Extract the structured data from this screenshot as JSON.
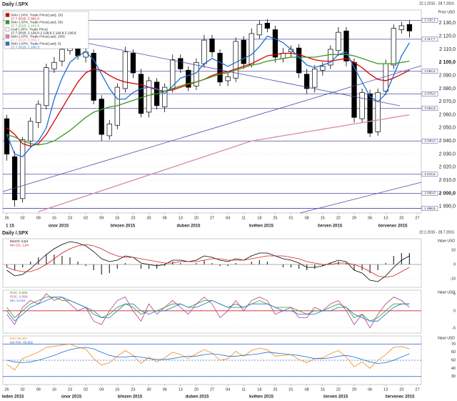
{
  "chart_data": [
    {
      "type": "candlestick",
      "title": "Daily /.SPX",
      "date_range": "22.1.2015 - 28.7.2015",
      "y_axis_label": "Price USD",
      "xtick_labels": [
        "26",
        "02",
        "09",
        "16",
        "23",
        "02",
        "09",
        "16",
        "23",
        "30",
        "06",
        "13",
        "20",
        "27",
        "04",
        "11",
        "18",
        "25",
        "01",
        "08",
        "15",
        "22",
        "29",
        "06",
        "13",
        "20",
        "27"
      ],
      "month_labels": [
        "1 15",
        "únor 2015",
        "březen 2015",
        "duben 2015",
        "květen 2015",
        "červen 2015",
        "červenec 2015"
      ],
      "open": [
        2057,
        2028,
        1996,
        2040,
        2054,
        2067,
        2095,
        2101,
        2109,
        2116,
        2104,
        2107,
        2072,
        2044,
        2052,
        2080,
        2107,
        2091,
        2062,
        2085,
        2066,
        2080,
        2103,
        2094,
        2082,
        2099,
        2118,
        2107,
        2086,
        2088,
        2117,
        2098,
        2121,
        2130,
        2125,
        2103,
        2108,
        2111,
        2091,
        2081,
        2094,
        2098,
        2109,
        2124,
        2100,
        2057,
        2076,
        2047,
        2078,
        2098,
        2125,
        2129
      ],
      "high": [
        2060,
        2032,
        2043,
        2058,
        2071,
        2099,
        2104,
        2113,
        2119,
        2119,
        2111,
        2110,
        2075,
        2056,
        2084,
        2112,
        2110,
        2095,
        2089,
        2088,
        2084,
        2106,
        2106,
        2097,
        2103,
        2121,
        2121,
        2110,
        2092,
        2119,
        2120,
        2126,
        2132,
        2133,
        2128,
        2111,
        2113,
        2114,
        2095,
        2098,
        2100,
        2113,
        2127,
        2127,
        2103,
        2080,
        2079,
        2080,
        2102,
        2129,
        2131,
        2132
      ],
      "low": [
        2025,
        1990,
        1993,
        2036,
        2050,
        2064,
        2092,
        2097,
        2106,
        2102,
        2100,
        2068,
        2040,
        2041,
        2049,
        2077,
        2088,
        2058,
        2058,
        2064,
        2062,
        2077,
        2092,
        2078,
        2079,
        2096,
        2104,
        2082,
        2082,
        2085,
        2095,
        2096,
        2118,
        2123,
        2100,
        2100,
        2104,
        2088,
        2076,
        2077,
        2090,
        2095,
        2105,
        2097,
        2054,
        2054,
        2043,
        2044,
        2075,
        2095,
        2122,
        2119
      ],
      "close": [
        2030,
        1995,
        2041,
        2055,
        2068,
        2096,
        2100,
        2110,
        2115,
        2105,
        2108,
        2071,
        2045,
        2053,
        2081,
        2108,
        2092,
        2061,
        2086,
        2067,
        2081,
        2102,
        2095,
        2081,
        2100,
        2117,
        2108,
        2085,
        2089,
        2116,
        2099,
        2122,
        2129,
        2126,
        2104,
        2107,
        2110,
        2092,
        2080,
        2095,
        2097,
        2110,
        2123,
        2101,
        2058,
        2077,
        2046,
        2077,
        2099,
        2126,
        2128,
        2124
      ],
      "up_color": "#ffffff",
      "down_color": "#000000",
      "candle_name": "Graf (.SPX, Trade Price)",
      "candle_legend_value": "17.7.2015: 2 126,0 2 128,9 2 119,9 2 126,6",
      "series": [
        {
          "name": "SMA (.SPX, Trade Price(Last), 20)",
          "legend_value": "17.7.2015: 2 091,6",
          "color": "#d40000",
          "values": [
            2050,
            2045,
            2038,
            2036,
            2038,
            2045,
            2055,
            2065,
            2075,
            2085,
            2092,
            2095,
            2094,
            2090,
            2087,
            2085,
            2084,
            2083,
            2081,
            2079,
            2078,
            2079,
            2081,
            2083,
            2085,
            2087,
            2090,
            2092,
            2093,
            2095,
            2097,
            2099,
            2102,
            2105,
            2106,
            2107,
            2107,
            2106,
            2104,
            2102,
            2101,
            2101,
            2102,
            2103,
            2100,
            2096,
            2091,
            2087,
            2086,
            2088,
            2091,
            2094
          ]
        },
        {
          "name": "SMA (.SPX, Trade Price(Last), 50)",
          "legend_value": "17.7.2015: 2 101,5",
          "color": "#3a9a1a",
          "values": [
            2045,
            2043,
            2040,
            2038,
            2037,
            2038,
            2040,
            2044,
            2048,
            2053,
            2058,
            2062,
            2064,
            2066,
            2067,
            2069,
            2071,
            2073,
            2075,
            2076,
            2078,
            2080,
            2082,
            2084,
            2085,
            2087,
            2089,
            2091,
            2092,
            2094,
            2096,
            2098,
            2099,
            2101,
            2102,
            2103,
            2104,
            2104,
            2104,
            2104,
            2105,
            2106,
            2106,
            2106,
            2105,
            2103,
            2101,
            2099,
            2099,
            2099,
            2100,
            2101
          ]
        },
        {
          "name": "SMA (.SPX, Trade Price(Last), 200)",
          "legend_value": "17.7.2015: 2 059,7",
          "color": "#d88aa8",
          "values": [
            null,
            null,
            null,
            null,
            1986,
            1988,
            1990,
            1992,
            1994,
            1996,
            1998,
            2000,
            2002,
            2004,
            2006,
            2008,
            2010,
            2012,
            2014,
            2016,
            2018,
            2020,
            2022,
            2024,
            2026,
            2028,
            2030,
            2032,
            2034,
            2036,
            2038,
            2040,
            2041,
            2042,
            2043,
            2044,
            2045,
            2046,
            2047,
            2048,
            2049,
            2050,
            2051,
            2052,
            2053,
            2054,
            2055,
            2056,
            2057,
            2058,
            2059,
            2060
          ]
        },
        {
          "name": "SMA (.SPX, Trade Price(Last), 5)",
          "legend_value": "17.7.2015: 2 100,3",
          "color": "#1f6fd0",
          "values": [
            2045,
            2030,
            2028,
            2035,
            2040,
            2050,
            2072,
            2088,
            2100,
            2105,
            2108,
            2102,
            2091,
            2080,
            2072,
            2072,
            2077,
            2080,
            2081,
            2080,
            2076,
            2082,
            2088,
            2090,
            2092,
            2099,
            2103,
            2100,
            2097,
            2100,
            2103,
            2106,
            2112,
            2120,
            2118,
            2115,
            2110,
            2104,
            2098,
            2096,
            2098,
            2100,
            2106,
            2108,
            2096,
            2085,
            2074,
            2070,
            2076,
            2090,
            2105,
            2115
          ]
        }
      ],
      "levels": [
        {
          "value": 2132.1,
          "label": "2 132,1"
        },
        {
          "value": 2117.7,
          "label": "2 117,7"
        },
        {
          "value": 2093.2,
          "label": "2 093,2"
        },
        {
          "value": 2076.0,
          "label": "2 076,0"
        },
        {
          "value": 2064.8,
          "label": "2 064,8"
        },
        {
          "value": 2040.0,
          "label": "2 040,0"
        },
        {
          "value": 2014.6,
          "label": "2 014,6"
        },
        {
          "value": 2000.0,
          "label": "2 000,0"
        },
        {
          "value": 1988.5,
          "label": "1 988,5"
        }
      ],
      "level_color": "#4a4aa8",
      "ylim": [
        1985,
        2140
      ],
      "yticks": [
        {
          "value": 1990,
          "label": "1 990,0"
        },
        {
          "value": 2000,
          "label": "2 000,0",
          "bold": true
        },
        {
          "value": 2010,
          "label": "2 010,0"
        },
        {
          "value": 2020,
          "label": "2 020,0"
        },
        {
          "value": 2030,
          "label": "2 030,0"
        },
        {
          "value": 2040,
          "label": "2 040,0"
        },
        {
          "value": 2050,
          "label": "2 050,0"
        },
        {
          "value": 2060,
          "label": "2 060,0"
        },
        {
          "value": 2070,
          "label": "2 070,0"
        },
        {
          "value": 2080,
          "label": "2 080,0"
        },
        {
          "value": 2090,
          "label": "2 090,0"
        },
        {
          "value": 2100,
          "label": "2 100,0",
          "bold": true
        },
        {
          "value": 2110,
          "label": "2 110,0"
        },
        {
          "value": 2120,
          "label": "2 120,0"
        },
        {
          "value": 2130,
          "label": "2 130,0"
        }
      ],
      "grid": true
    },
    {
      "type": "line",
      "title": "Daily /.SPX",
      "date_range": "22.1.2015 - 28.7.2015",
      "y_axis_label": "Value USD",
      "series": [
        {
          "name": "MACD: 6,54",
          "color": "#000000",
          "values": [
            -4,
            -8,
            -7,
            -3,
            2,
            7,
            11,
            14,
            16,
            15,
            13,
            9,
            4,
            2,
            3,
            6,
            5,
            1,
            0,
            -1,
            0,
            3,
            3,
            2,
            3,
            6,
            5,
            3,
            2,
            4,
            3,
            6,
            8,
            8,
            6,
            4,
            3,
            1,
            -2,
            -2,
            -1,
            1,
            3,
            2,
            -4,
            -6,
            -11,
            -12,
            -8,
            -2,
            3,
            6
          ]
        },
        {
          "name": "MA CD: 2,94",
          "color": "#d42020",
          "values": [
            -2,
            -4,
            -5,
            -5,
            -3,
            0,
            4,
            8,
            11,
            13,
            14,
            13,
            11,
            8,
            6,
            5,
            5,
            4,
            3,
            2,
            1,
            1,
            2,
            2,
            2,
            3,
            4,
            4,
            3,
            3,
            3,
            4,
            5,
            6,
            6,
            6,
            5,
            4,
            2,
            1,
            0,
            0,
            1,
            1,
            0,
            -2,
            -5,
            -8,
            -9,
            -8,
            -5,
            -2
          ]
        }
      ],
      "histogram": {
        "color": "#333333",
        "values": [
          -2,
          -4,
          -2,
          2,
          5,
          7,
          7,
          6,
          5,
          2,
          -1,
          -4,
          -7,
          -6,
          -3,
          1,
          0,
          -3,
          -3,
          -3,
          -1,
          2,
          1,
          0,
          1,
          3,
          1,
          -1,
          -1,
          1,
          0,
          2,
          3,
          2,
          0,
          -2,
          -2,
          -3,
          -4,
          -3,
          -1,
          1,
          2,
          1,
          -4,
          -4,
          -6,
          -4,
          1,
          6,
          8,
          8
        ]
      },
      "levels": [
        0
      ],
      "level_color": "#999999",
      "ylim": [
        -16,
        18
      ],
      "yticks": [
        -10,
        0,
        10
      ],
      "grid": true
    },
    {
      "type": "line",
      "y_axis_label": "Value USD",
      "series": [
        {
          "name": "ROC: 0,999",
          "color": "#3a9a1a",
          "values": [
            1,
            -2,
            0,
            2,
            3,
            4,
            4,
            3,
            3,
            2,
            1,
            -1,
            -2,
            -1,
            1,
            2,
            1,
            -1,
            0,
            0,
            1,
            2,
            2,
            1,
            2,
            3,
            3,
            2,
            1,
            2,
            1,
            2,
            3,
            2,
            1,
            1,
            1,
            0,
            -1,
            0,
            0,
            1,
            2,
            1,
            -2,
            -1,
            -3,
            -2,
            0,
            2,
            2,
            2
          ]
        },
        {
          "name": "ROC: 0,599",
          "color": "#b03a90",
          "values": [
            -1,
            -4,
            1,
            3,
            2,
            5,
            3,
            4,
            2,
            0,
            1,
            -3,
            -4,
            0,
            3,
            4,
            0,
            -3,
            2,
            -1,
            1,
            3,
            1,
            -1,
            2,
            4,
            2,
            -2,
            0,
            3,
            0,
            3,
            4,
            3,
            -1,
            0,
            1,
            -2,
            -2,
            1,
            0,
            2,
            3,
            0,
            -4,
            -1,
            -5,
            -1,
            2,
            4,
            3,
            1
          ]
        },
        {
          "name": "MA: 0,234",
          "color": "#1f6fd0",
          "values": [
            0,
            -3,
            -1,
            1,
            2,
            3,
            4,
            4,
            3,
            2,
            1,
            0,
            -2,
            -2,
            0,
            2,
            2,
            0,
            -1,
            0,
            0,
            1,
            2,
            1,
            1,
            2,
            3,
            2,
            1,
            1,
            1,
            2,
            2,
            2,
            1,
            0,
            0,
            -1,
            -1,
            -1,
            0,
            0,
            1,
            1,
            -1,
            -2,
            -3,
            -3,
            -1,
            1,
            2,
            2
          ]
        }
      ],
      "levels": [
        0
      ],
      "level_color": "#d42020",
      "ylim": [
        -6.5,
        6
      ],
      "yticks": [
        -5,
        0,
        5
      ],
      "grid": true
    },
    {
      "type": "line",
      "y_axis_label": "Value USD",
      "xtick_labels": [
        "26",
        "02",
        "09",
        "16",
        "23",
        "02",
        "09",
        "16",
        "23",
        "30",
        "06",
        "13",
        "20",
        "27",
        "04",
        "11",
        "18",
        "25",
        "01",
        "08",
        "15",
        "22",
        "29",
        "06",
        "13",
        "20",
        "27"
      ],
      "month_labels": [
        "leden 2015",
        "únor 2015",
        "březen 2015",
        "duben 2015",
        "květen 2015",
        "červen 2015",
        "červenec 2015"
      ],
      "series": [
        {
          "name": "RSI: 59,467",
          "color": "#f08a1c",
          "values": [
            45,
            38,
            52,
            56,
            60,
            66,
            67,
            69,
            70,
            66,
            64,
            52,
            44,
            47,
            55,
            62,
            56,
            46,
            54,
            48,
            53,
            60,
            57,
            52,
            58,
            63,
            59,
            50,
            52,
            61,
            55,
            62,
            65,
            63,
            55,
            56,
            57,
            51,
            47,
            52,
            53,
            58,
            62,
            54,
            42,
            48,
            40,
            50,
            57,
            66,
            67,
            64
          ]
        },
        {
          "name": "MA RSI: 46,902",
          "color": "#1f6fd0",
          "values": [
            50,
            48,
            47,
            48,
            50,
            53,
            56,
            60,
            63,
            65,
            66,
            64,
            60,
            56,
            54,
            54,
            55,
            54,
            52,
            51,
            51,
            52,
            54,
            55,
            55,
            57,
            58,
            57,
            55,
            55,
            56,
            57,
            58,
            60,
            59,
            58,
            57,
            56,
            54,
            52,
            52,
            53,
            55,
            56,
            54,
            51,
            48,
            46,
            47,
            50,
            54,
            58
          ]
        }
      ],
      "levels": [
        30,
        50,
        70
      ],
      "level_color": "#4a6ad0",
      "ylim": [
        20,
        80
      ],
      "yticks": [
        30,
        40,
        50,
        60,
        70
      ],
      "grid": true
    }
  ]
}
